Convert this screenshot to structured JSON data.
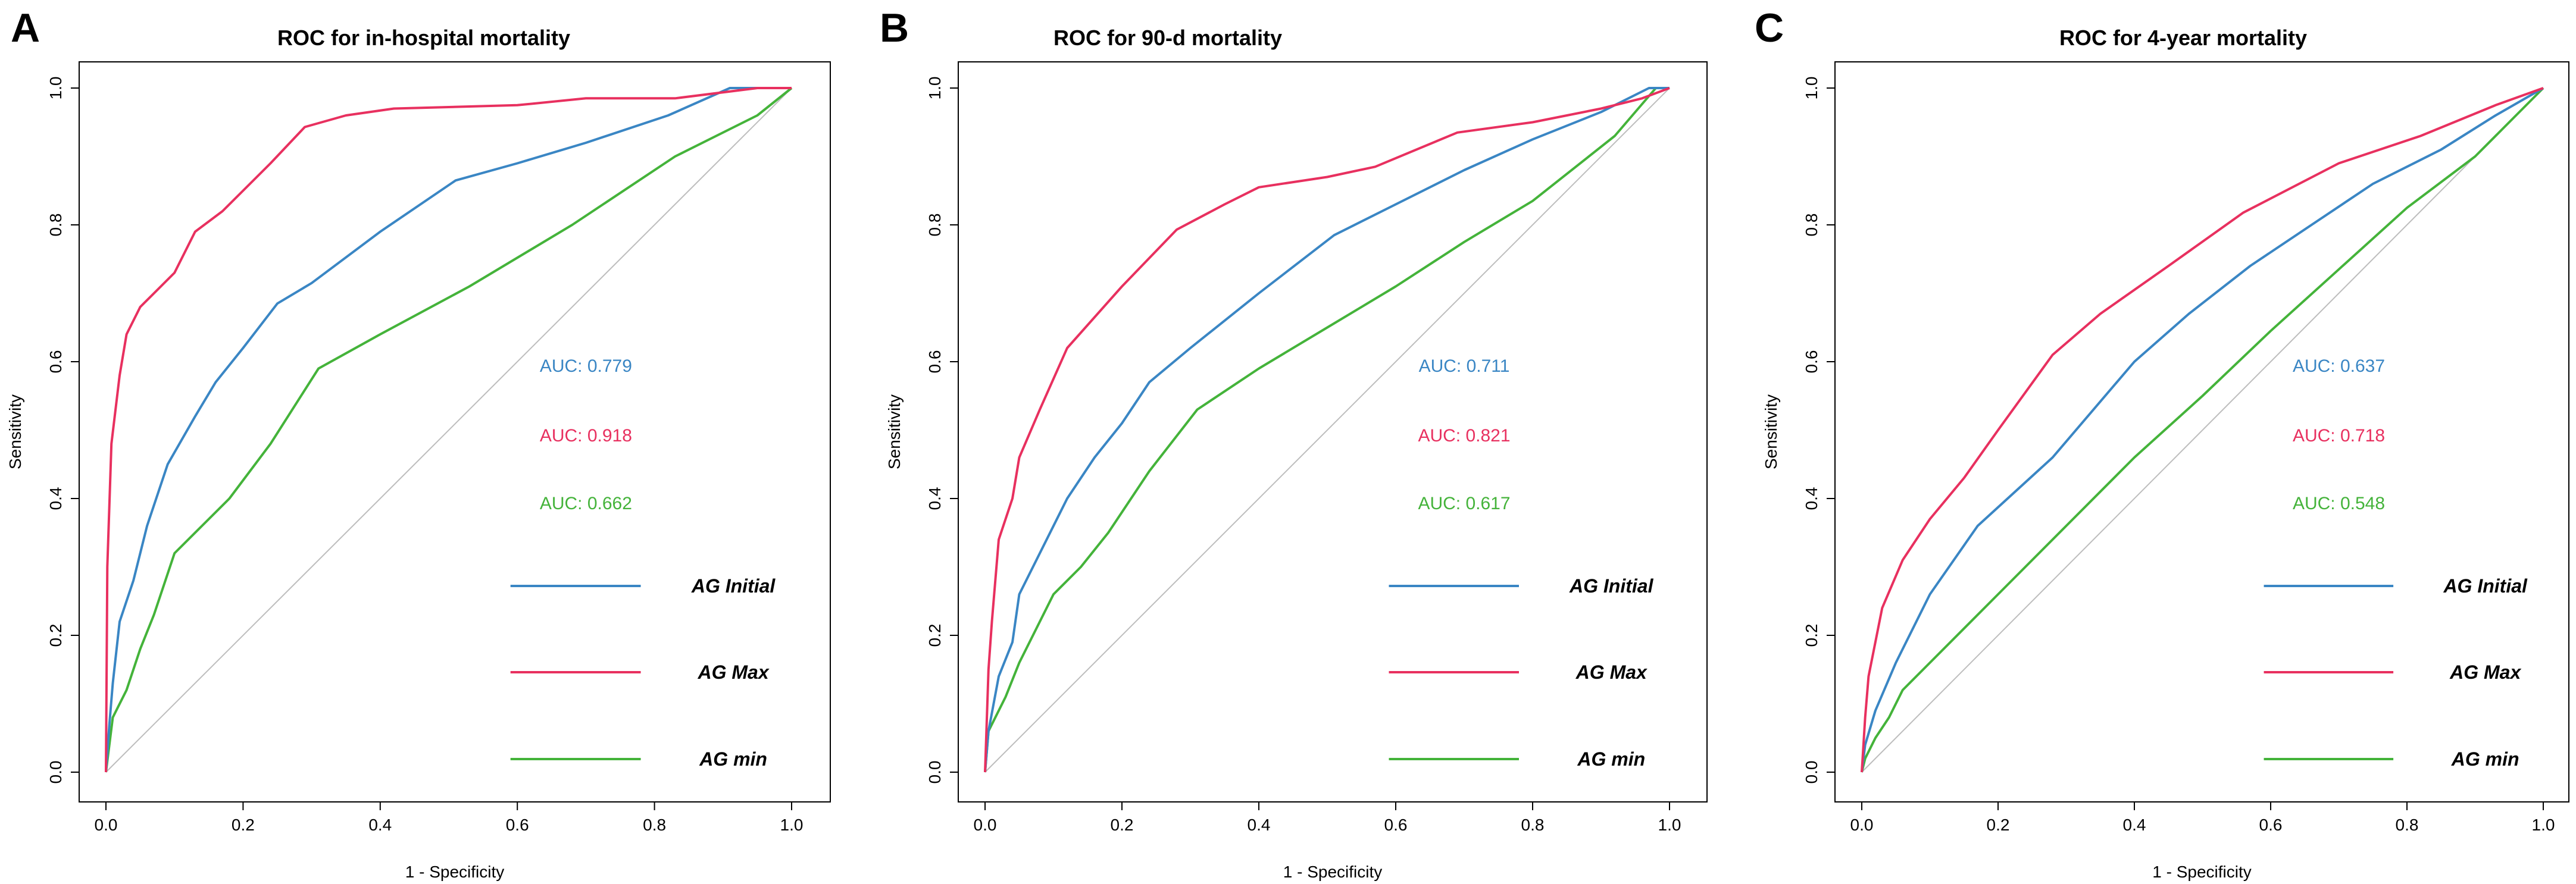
{
  "chart_data": [
    {
      "type": "line",
      "panel_letter": "A",
      "title": "ROC for in-hospital mortality",
      "xlabel": "1 - Specificity",
      "ylabel": "Sensitivity",
      "xlim": [
        0,
        1
      ],
      "ylim": [
        0,
        1
      ],
      "x_ticks": [
        "0.0",
        "0.2",
        "0.4",
        "0.6",
        "0.8",
        "1.0"
      ],
      "y_ticks": [
        "0.0",
        "0.2",
        "0.4",
        "0.6",
        "0.8",
        "1.0"
      ],
      "reference_line": "diagonal",
      "series": [
        {
          "name": "AG Initial",
          "color": "#3a86c4",
          "auc": "AUC: 0.779",
          "points": [
            [
              0,
              0
            ],
            [
              0.005,
              0.07
            ],
            [
              0.01,
              0.13
            ],
            [
              0.02,
              0.22
            ],
            [
              0.04,
              0.28
            ],
            [
              0.06,
              0.36
            ],
            [
              0.09,
              0.45
            ],
            [
              0.13,
              0.52
            ],
            [
              0.16,
              0.57
            ],
            [
              0.2,
              0.62
            ],
            [
              0.25,
              0.685
            ],
            [
              0.3,
              0.715
            ],
            [
              0.4,
              0.79
            ],
            [
              0.51,
              0.865
            ],
            [
              0.6,
              0.89
            ],
            [
              0.7,
              0.92
            ],
            [
              0.82,
              0.96
            ],
            [
              0.91,
              1.0
            ],
            [
              1.0,
              1.0
            ]
          ]
        },
        {
          "name": "AG Max",
          "color": "#e8305f",
          "auc": "AUC: 0.918",
          "points": [
            [
              0,
              0
            ],
            [
              0.002,
              0.3
            ],
            [
              0.008,
              0.48
            ],
            [
              0.02,
              0.58
            ],
            [
              0.03,
              0.64
            ],
            [
              0.05,
              0.68
            ],
            [
              0.08,
              0.71
            ],
            [
              0.1,
              0.73
            ],
            [
              0.13,
              0.79
            ],
            [
              0.17,
              0.82
            ],
            [
              0.2,
              0.85
            ],
            [
              0.24,
              0.89
            ],
            [
              0.29,
              0.943
            ],
            [
              0.35,
              0.96
            ],
            [
              0.42,
              0.97
            ],
            [
              0.6,
              0.975
            ],
            [
              0.7,
              0.985
            ],
            [
              0.83,
              0.985
            ],
            [
              0.95,
              1.0
            ],
            [
              1.0,
              1.0
            ]
          ]
        },
        {
          "name": "AG min",
          "color": "#44b33a",
          "auc": "AUC: 0.662",
          "points": [
            [
              0,
              0
            ],
            [
              0.01,
              0.08
            ],
            [
              0.03,
              0.12
            ],
            [
              0.05,
              0.18
            ],
            [
              0.07,
              0.23
            ],
            [
              0.1,
              0.32
            ],
            [
              0.14,
              0.36
            ],
            [
              0.18,
              0.4
            ],
            [
              0.24,
              0.48
            ],
            [
              0.31,
              0.59
            ],
            [
              0.4,
              0.64
            ],
            [
              0.53,
              0.71
            ],
            [
              0.68,
              0.8
            ],
            [
              0.83,
              0.9
            ],
            [
              0.95,
              0.96
            ],
            [
              1.0,
              1.0
            ]
          ]
        }
      ]
    },
    {
      "type": "line",
      "panel_letter": "B",
      "title": "ROC for 90-d mortality",
      "xlabel": "1 - Specificity",
      "ylabel": "Sensitivity",
      "xlim": [
        0,
        1
      ],
      "ylim": [
        0,
        1
      ],
      "x_ticks": [
        "0.0",
        "0.2",
        "0.4",
        "0.6",
        "0.8",
        "1.0"
      ],
      "y_ticks": [
        "0.0",
        "0.2",
        "0.4",
        "0.6",
        "0.8",
        "1.0"
      ],
      "reference_line": "diagonal",
      "series": [
        {
          "name": "AG Initial",
          "color": "#3a86c4",
          "auc": "AUC: 0.711",
          "points": [
            [
              0,
              0
            ],
            [
              0.005,
              0.06
            ],
            [
              0.02,
              0.14
            ],
            [
              0.04,
              0.19
            ],
            [
              0.05,
              0.26
            ],
            [
              0.08,
              0.32
            ],
            [
              0.12,
              0.4
            ],
            [
              0.16,
              0.46
            ],
            [
              0.2,
              0.51
            ],
            [
              0.24,
              0.57
            ],
            [
              0.3,
              0.62
            ],
            [
              0.4,
              0.7
            ],
            [
              0.51,
              0.785
            ],
            [
              0.6,
              0.83
            ],
            [
              0.7,
              0.88
            ],
            [
              0.8,
              0.925
            ],
            [
              0.9,
              0.965
            ],
            [
              0.97,
              1.0
            ],
            [
              1.0,
              1.0
            ]
          ]
        },
        {
          "name": "AG Max",
          "color": "#e8305f",
          "auc": "AUC: 0.821",
          "points": [
            [
              0,
              0
            ],
            [
              0.005,
              0.15
            ],
            [
              0.01,
              0.22
            ],
            [
              0.02,
              0.34
            ],
            [
              0.04,
              0.4
            ],
            [
              0.05,
              0.46
            ],
            [
              0.08,
              0.53
            ],
            [
              0.12,
              0.62
            ],
            [
              0.2,
              0.71
            ],
            [
              0.28,
              0.793
            ],
            [
              0.35,
              0.83
            ],
            [
              0.4,
              0.855
            ],
            [
              0.5,
              0.87
            ],
            [
              0.57,
              0.885
            ],
            [
              0.69,
              0.935
            ],
            [
              0.8,
              0.95
            ],
            [
              0.9,
              0.97
            ],
            [
              0.96,
              0.985
            ],
            [
              1.0,
              1.0
            ]
          ]
        },
        {
          "name": "AG min",
          "color": "#44b33a",
          "auc": "AUC: 0.617",
          "points": [
            [
              0,
              0
            ],
            [
              0.005,
              0.06
            ],
            [
              0.03,
              0.11
            ],
            [
              0.05,
              0.16
            ],
            [
              0.08,
              0.22
            ],
            [
              0.1,
              0.26
            ],
            [
              0.14,
              0.3
            ],
            [
              0.18,
              0.35
            ],
            [
              0.24,
              0.44
            ],
            [
              0.31,
              0.53
            ],
            [
              0.4,
              0.59
            ],
            [
              0.5,
              0.65
            ],
            [
              0.6,
              0.71
            ],
            [
              0.7,
              0.775
            ],
            [
              0.8,
              0.835
            ],
            [
              0.92,
              0.93
            ],
            [
              0.98,
              1.0
            ],
            [
              1.0,
              1.0
            ]
          ]
        }
      ]
    },
    {
      "type": "line",
      "panel_letter": "C",
      "title": "ROC for 4-year mortality",
      "xlabel": "1 - Specificity",
      "ylabel": "Sensitivity",
      "xlim": [
        0,
        1
      ],
      "ylim": [
        0,
        1
      ],
      "x_ticks": [
        "0.0",
        "0.2",
        "0.4",
        "0.6",
        "0.8",
        "1.0"
      ],
      "y_ticks": [
        "0.0",
        "0.2",
        "0.4",
        "0.6",
        "0.8",
        "1.0"
      ],
      "reference_line": "diagonal",
      "series": [
        {
          "name": "AG Initial",
          "color": "#3a86c4",
          "auc": "AUC: 0.637",
          "points": [
            [
              0,
              0
            ],
            [
              0.005,
              0.04
            ],
            [
              0.02,
              0.09
            ],
            [
              0.05,
              0.16
            ],
            [
              0.1,
              0.26
            ],
            [
              0.17,
              0.36
            ],
            [
              0.28,
              0.46
            ],
            [
              0.4,
              0.6
            ],
            [
              0.48,
              0.67
            ],
            [
              0.57,
              0.74
            ],
            [
              0.66,
              0.8
            ],
            [
              0.75,
              0.86
            ],
            [
              0.85,
              0.91
            ],
            [
              0.93,
              0.96
            ],
            [
              1.0,
              1.0
            ]
          ]
        },
        {
          "name": "AG Max",
          "color": "#e8305f",
          "auc": "AUC: 0.718",
          "points": [
            [
              0,
              0
            ],
            [
              0.005,
              0.08
            ],
            [
              0.01,
              0.14
            ],
            [
              0.03,
              0.24
            ],
            [
              0.06,
              0.31
            ],
            [
              0.1,
              0.37
            ],
            [
              0.15,
              0.43
            ],
            [
              0.2,
              0.5
            ],
            [
              0.28,
              0.61
            ],
            [
              0.35,
              0.67
            ],
            [
              0.45,
              0.74
            ],
            [
              0.56,
              0.818
            ],
            [
              0.7,
              0.89
            ],
            [
              0.82,
              0.93
            ],
            [
              0.93,
              0.975
            ],
            [
              1.0,
              1.0
            ]
          ]
        },
        {
          "name": "AG min",
          "color": "#44b33a",
          "auc": "AUC: 0.548",
          "points": [
            [
              0,
              0
            ],
            [
              0.005,
              0.02
            ],
            [
              0.02,
              0.05
            ],
            [
              0.04,
              0.08
            ],
            [
              0.06,
              0.12
            ],
            [
              0.1,
              0.16
            ],
            [
              0.2,
              0.26
            ],
            [
              0.3,
              0.36
            ],
            [
              0.4,
              0.46
            ],
            [
              0.5,
              0.55
            ],
            [
              0.6,
              0.645
            ],
            [
              0.7,
              0.735
            ],
            [
              0.8,
              0.825
            ],
            [
              0.9,
              0.9
            ],
            [
              0.94,
              0.94
            ],
            [
              1.0,
              1.0
            ]
          ]
        }
      ]
    }
  ]
}
